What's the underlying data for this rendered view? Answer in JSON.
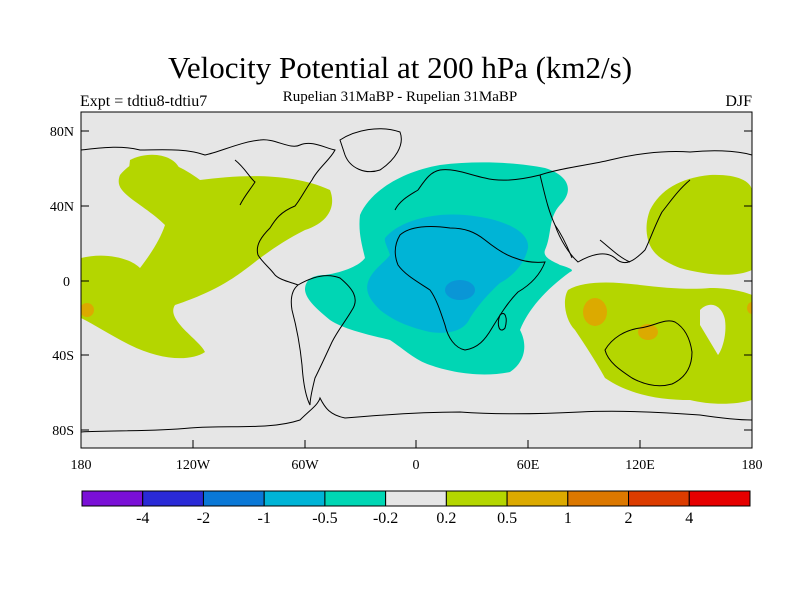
{
  "title": "Velocity Potential at 200 hPa (km2/s)",
  "subtitle": "Rupelian  31MaBP - Rupelian  31MaBP",
  "experiment": "Expt = tdtiu8-tdtiu7",
  "season": "DJF",
  "colors": {
    "ocean_land_bg": "#e6e6e6",
    "coast": "#000000",
    "pos_02_05": "#b4d600",
    "pos_05_1": "#dcaa00",
    "neg_02_05": "#00d6b4",
    "neg_05_1": "#00b4d6"
  },
  "chart_data": {
    "type": "heatmap",
    "title": "Velocity Potential at 200 hPa (km2/s)",
    "projection": "cylindrical equidistant",
    "x_ticks": [
      "180",
      "120W",
      "60W",
      "0",
      "60E",
      "120E",
      "180"
    ],
    "y_ticks": [
      "80N",
      "40N",
      "0",
      "40S",
      "80S"
    ],
    "xlim": [
      -180,
      180
    ],
    "ylim": [
      -90,
      90
    ],
    "colorbar": {
      "labels": [
        "-4",
        "-2",
        "-1",
        "-0.5",
        "-0.2",
        "0.2",
        "0.5",
        "1",
        "2",
        "4"
      ],
      "colors": [
        "#7a10d6",
        "#2a2ad6",
        "#0a78d6",
        "#00b4d6",
        "#00d6b4",
        "#e6e6e6",
        "#b4d600",
        "#dcaa00",
        "#dc7800",
        "#dc3c00",
        "#e60000"
      ]
    },
    "regions": [
      {
        "name": "Africa / Atlantic negative anomaly",
        "level": "-0.5 to -0.2"
      },
      {
        "name": "Central Africa negative anomaly",
        "level": "-1 to -0.5"
      },
      {
        "name": "North Pacific positive anomaly",
        "level": "0.2 to 0.5"
      },
      {
        "name": "West Pacific / Australia positive anomaly",
        "level": "0.2 to 0.5"
      },
      {
        "name": "Indian Ocean / Australia local maxima",
        "level": "0.5 to 1"
      }
    ]
  }
}
